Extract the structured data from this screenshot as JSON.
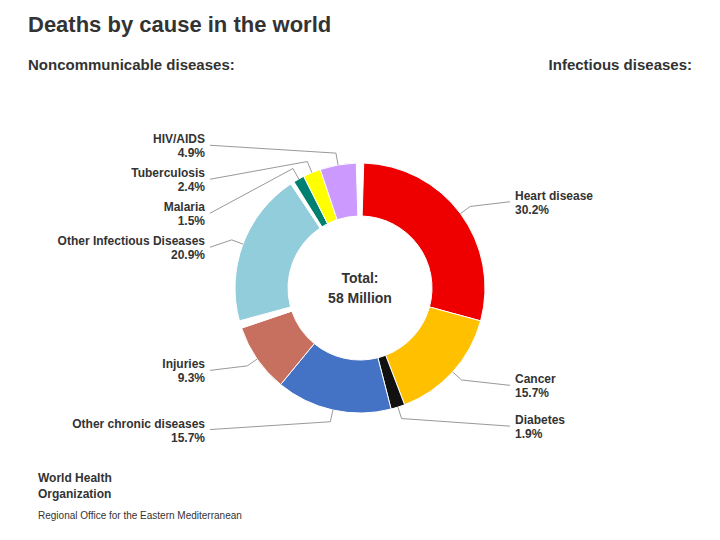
{
  "chart_data": {
    "type": "pie",
    "title": "Deaths by cause in the world",
    "categories": [
      null,
      "Heart disease",
      "Cancer",
      "Diabetes",
      "Other chronic diseases",
      "Injuries",
      null,
      "Other Infectious Diseases",
      null,
      "Malaria",
      "Tuberculosis",
      "HIV/AIDS"
    ],
    "values": [
      1.0,
      30.2,
      15.7,
      1.9,
      15.7,
      9.3,
      1.0,
      20.9,
      0.5,
      1.5,
      2.4,
      4.9
    ],
    "value_labels": [
      null,
      "30.2%",
      "15.7%",
      "1.9%",
      "15.7%",
      "9.3%",
      null,
      "20.9%",
      null,
      "1.5%",
      "2.4%",
      "4.9%"
    ],
    "colors": [
      "#ffffff",
      "#ee0000",
      "#ffc000",
      "#111111",
      "#4472c4",
      "#c87060",
      "#ffffff",
      "#92cddc",
      "#ffffff",
      "#008070",
      "#ffff00",
      "#cc99ff"
    ],
    "data_labels": true,
    "annotations": [
      "Noncommunicable diseases:",
      "Infectious diseases:",
      "Total:",
      "58 Million",
      "World Health",
      "Organization",
      "Regional Office for the Eastern Mediterranean"
    ]
  }
}
